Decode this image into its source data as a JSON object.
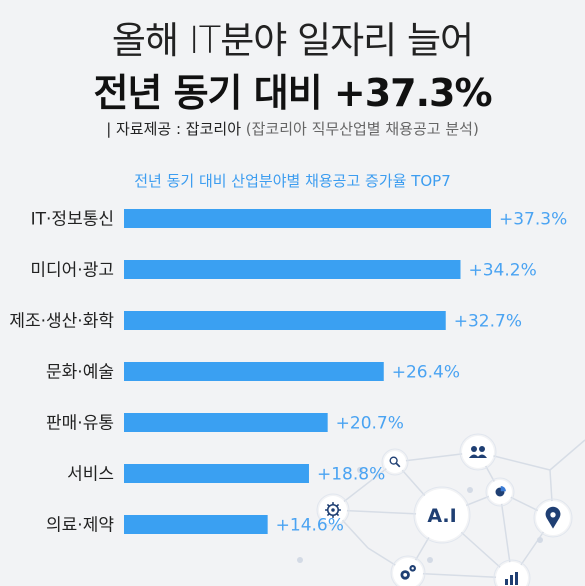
{
  "header": {
    "title_line1": "올해 IT분야 일자리 늘어",
    "title_line2": "전년 동기 대비 +37.3%",
    "source_prefix": "| 자료제공 : 잡코리아",
    "source_detail": "(잡코리아 직무산업별 채용공고 분석)"
  },
  "icons": [
    "search-icon",
    "people-icon",
    "pie-chart-icon",
    "gear-icon",
    "location-pin-icon",
    "gears-icon",
    "bar-chart-icon"
  ],
  "ai_badge": "A.I",
  "colors": {
    "bar": "#3aa0f2",
    "value_text": "#4aa3f2",
    "title_accent": "#3d9df0"
  },
  "chart_data": {
    "type": "bar",
    "orientation": "horizontal",
    "title": "전년 동기 대비 산업분야별 채용공고 증가율 TOP7",
    "categories": [
      "IT·정보통신",
      "미디어·광고",
      "제조·생산·화학",
      "문화·예술",
      "판매·유통",
      "서비스",
      "의료·제약"
    ],
    "values": [
      37.3,
      34.2,
      32.7,
      26.4,
      20.7,
      18.8,
      14.6
    ],
    "value_labels": [
      "+37.3%",
      "+34.2%",
      "+32.7%",
      "+26.4%",
      "+20.7%",
      "+18.8%",
      "+14.6%"
    ],
    "unit": "%",
    "xlim": [
      0,
      37.3
    ],
    "grid": false,
    "legend": "none"
  }
}
